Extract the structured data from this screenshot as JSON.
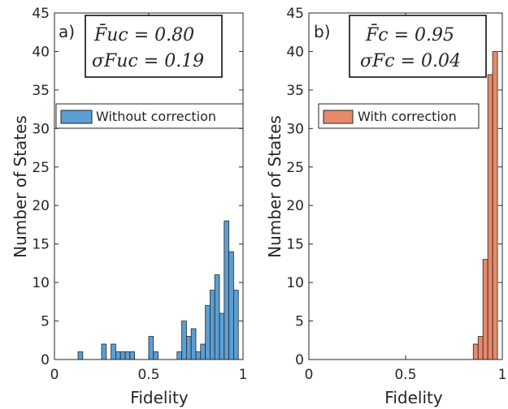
{
  "colors": {
    "uncorrected": "#5a9fd4",
    "corrected": "#e8896b",
    "axis": "#262626"
  },
  "chart_data": [
    {
      "type": "bar",
      "panel_label": "a)",
      "stats_line1": "F̄uc = 0.80",
      "stats_line2": "σFuc = 0.19",
      "legend": "Without correction",
      "xlabel": "Fidelity",
      "ylabel": "Number of States",
      "xlim": [
        0,
        1
      ],
      "ylim": [
        0,
        45
      ],
      "xticks": [
        "0",
        "0.5",
        "1"
      ],
      "yticks": [
        "0",
        "5",
        "10",
        "15",
        "20",
        "25",
        "30",
        "35",
        "40",
        "45"
      ],
      "bin_width": 0.025,
      "bins": [
        {
          "x": 0.125,
          "count": 1
        },
        {
          "x": 0.25,
          "count": 2
        },
        {
          "x": 0.3,
          "count": 2
        },
        {
          "x": 0.325,
          "count": 1
        },
        {
          "x": 0.35,
          "count": 1
        },
        {
          "x": 0.375,
          "count": 1
        },
        {
          "x": 0.4,
          "count": 1
        },
        {
          "x": 0.5,
          "count": 3
        },
        {
          "x": 0.525,
          "count": 1
        },
        {
          "x": 0.65,
          "count": 1
        },
        {
          "x": 0.675,
          "count": 5
        },
        {
          "x": 0.7,
          "count": 3
        },
        {
          "x": 0.725,
          "count": 4
        },
        {
          "x": 0.75,
          "count": 1
        },
        {
          "x": 0.775,
          "count": 2
        },
        {
          "x": 0.8,
          "count": 7
        },
        {
          "x": 0.825,
          "count": 9
        },
        {
          "x": 0.85,
          "count": 11
        },
        {
          "x": 0.875,
          "count": 6
        },
        {
          "x": 0.9,
          "count": 18
        },
        {
          "x": 0.925,
          "count": 14
        },
        {
          "x": 0.95,
          "count": 9
        }
      ]
    },
    {
      "type": "bar",
      "panel_label": "b)",
      "stats_line1": "F̄c = 0.95",
      "stats_line2": "σFc = 0.04",
      "legend": "With correction",
      "xlabel": "Fidelity",
      "ylabel": "Number of States",
      "xlim": [
        0,
        1
      ],
      "ylim": [
        0,
        45
      ],
      "xticks": [
        "0",
        "0.5",
        "1"
      ],
      "yticks": [
        "0",
        "5",
        "10",
        "15",
        "20",
        "25",
        "30",
        "35",
        "40",
        "45"
      ],
      "bin_width": 0.025,
      "bins": [
        {
          "x": 0.85,
          "count": 2
        },
        {
          "x": 0.875,
          "count": 3
        },
        {
          "x": 0.9,
          "count": 13
        },
        {
          "x": 0.925,
          "count": 37
        },
        {
          "x": 0.95,
          "count": 40
        }
      ]
    }
  ]
}
